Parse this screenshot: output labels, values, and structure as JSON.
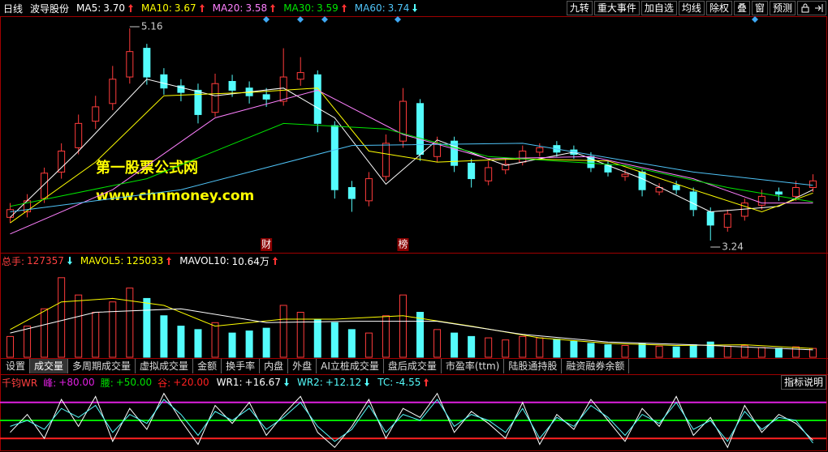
{
  "toolbar": {
    "period": "日线",
    "stock": "波导股份",
    "buttons": [
      "九转",
      "重大事件",
      "加自选",
      "均线",
      "除权",
      "叠",
      "窗",
      "预测"
    ],
    "tabs": [
      "设置",
      "成交量",
      "多周期成交量",
      "虚拟成交量",
      "金额",
      "换手率",
      "内盘",
      "外盘",
      "AI立桩成交量",
      "盘后成交量",
      "市盈率(ttm)",
      "陆股通持股",
      "融资融券余额"
    ],
    "active_tab": 1,
    "help": "指标说明"
  },
  "watermark": [
    "第一股票公式网",
    "www.chnmoney.com"
  ],
  "chart_data": [
    {
      "type": "candlestick",
      "up_color": "#ff3c3c",
      "down_color": "#54fcfc",
      "ylim": [
        3.13,
        5.27
      ],
      "open": [
        3.45,
        3.5,
        3.62,
        3.86,
        4.08,
        4.32,
        4.48,
        4.72,
        4.98,
        4.74,
        4.64,
        4.6,
        4.4,
        4.68,
        4.62,
        4.56,
        4.5,
        4.7,
        4.74,
        4.28,
        3.72,
        3.6,
        3.82,
        4.14,
        4.48,
        4.0,
        4.14,
        3.94,
        3.78,
        3.88,
        3.95,
        4.04,
        4.1,
        4.06,
        4.0,
        3.92,
        3.82,
        3.86,
        3.68,
        3.74,
        3.68,
        3.5,
        3.36,
        3.46,
        3.56,
        3.68,
        3.64,
        3.72
      ],
      "high": [
        3.58,
        3.66,
        3.9,
        4.12,
        4.38,
        4.55,
        4.82,
        5.16,
        5.02,
        4.8,
        4.7,
        4.66,
        4.75,
        4.74,
        4.68,
        4.62,
        4.98,
        4.9,
        4.78,
        4.32,
        3.78,
        3.86,
        4.2,
        4.62,
        4.52,
        4.18,
        4.18,
        3.98,
        3.96,
        3.98,
        4.1,
        4.12,
        4.14,
        4.1,
        4.04,
        3.96,
        3.88,
        3.88,
        3.76,
        3.78,
        3.72,
        3.54,
        3.52,
        3.62,
        3.7,
        3.72,
        3.78,
        3.84
      ],
      "low": [
        3.4,
        3.45,
        3.58,
        3.8,
        4.02,
        4.25,
        4.42,
        4.66,
        4.65,
        4.56,
        4.5,
        4.3,
        4.36,
        4.54,
        4.48,
        4.45,
        4.46,
        4.64,
        4.22,
        3.62,
        3.5,
        3.55,
        3.78,
        4.08,
        3.96,
        3.95,
        3.86,
        3.72,
        3.74,
        3.84,
        3.92,
        4.0,
        4.0,
        3.98,
        3.86,
        3.82,
        3.78,
        3.64,
        3.65,
        3.66,
        3.46,
        3.24,
        3.32,
        3.42,
        3.52,
        3.6,
        3.6,
        3.68
      ],
      "close": [
        3.52,
        3.6,
        3.85,
        4.05,
        4.3,
        4.45,
        4.7,
        4.95,
        4.72,
        4.62,
        4.58,
        4.38,
        4.66,
        4.6,
        4.55,
        4.52,
        4.72,
        4.76,
        4.3,
        3.7,
        3.62,
        3.8,
        4.12,
        4.5,
        4.02,
        4.12,
        3.92,
        3.8,
        3.9,
        3.93,
        4.05,
        4.08,
        4.04,
        4.02,
        3.9,
        3.86,
        3.84,
        3.7,
        3.72,
        3.7,
        3.52,
        3.38,
        3.48,
        3.58,
        3.64,
        3.66,
        3.72,
        3.78
      ],
      "series": [
        {
          "name": "MA5:",
          "color": "#ffffff",
          "value_label": "3.70",
          "trend": "up",
          "x": [
            0,
            4,
            8,
            12,
            16,
            19,
            22,
            25,
            29,
            33,
            37,
            41,
            45,
            47
          ],
          "values": [
            3.45,
            4.05,
            4.7,
            4.55,
            4.62,
            4.35,
            3.75,
            4.15,
            3.92,
            4.04,
            3.8,
            3.5,
            3.55,
            3.7
          ]
        },
        {
          "name": "MA10:",
          "color": "#ffff00",
          "value_label": "3.67",
          "trend": "up",
          "x": [
            0,
            5,
            9,
            14,
            18,
            21,
            25,
            30,
            35,
            40,
            44,
            47
          ],
          "values": [
            3.4,
            3.95,
            4.55,
            4.58,
            4.62,
            4.05,
            3.95,
            3.98,
            3.96,
            3.7,
            3.5,
            3.67
          ]
        },
        {
          "name": "MA20:",
          "color": "#ff80ff",
          "value_label": "3.58",
          "trend": "up",
          "x": [
            0,
            6,
            12,
            18,
            23,
            28,
            34,
            40,
            44,
            47
          ],
          "values": [
            3.3,
            3.7,
            4.35,
            4.6,
            4.2,
            3.98,
            4.0,
            3.8,
            3.58,
            3.58
          ]
        },
        {
          "name": "MA30:",
          "color": "#00e600",
          "value_label": "3.59",
          "trend": "up",
          "x": [
            0,
            8,
            16,
            22,
            28,
            36,
            42,
            47
          ],
          "values": [
            3.55,
            3.8,
            4.3,
            4.25,
            4.0,
            3.92,
            3.72,
            3.59
          ]
        },
        {
          "name": "MA60:",
          "color": "#4fc3f7",
          "value_label": "3.74",
          "trend": "down",
          "x": [
            0,
            10,
            20,
            30,
            40,
            47
          ],
          "values": [
            3.5,
            3.7,
            4.1,
            4.12,
            3.86,
            3.74
          ]
        }
      ],
      "annotations": [
        {
          "x": 7,
          "value": 5.16
        },
        {
          "x": 41,
          "value": 3.24
        }
      ],
      "markers": [
        {
          "x": 15,
          "label": "财"
        },
        {
          "x": 23,
          "label": "榜"
        }
      ]
    },
    {
      "type": "bar",
      "title": "总手:",
      "title_color": "#ff4040",
      "trend": "down",
      "ylim": [
        0,
        1300000
      ],
      "values": [
        300000,
        450000,
        700000,
        1150000,
        900000,
        650000,
        800000,
        1000000,
        850000,
        600000,
        450000,
        400000,
        500000,
        350000,
        380000,
        420000,
        750000,
        650000,
        550000,
        500000,
        400000,
        350000,
        600000,
        900000,
        650000,
        400000,
        350000,
        300000,
        280000,
        250000,
        300000,
        280000,
        260000,
        230000,
        200000,
        180000,
        170000,
        200000,
        160000,
        150000,
        180000,
        220000,
        160000,
        170000,
        140000,
        130000,
        150000,
        127357
      ],
      "series": [
        {
          "name": "MAVOL5:",
          "color": "#ffff00",
          "value_label": "125033",
          "trend": "up",
          "x": [
            0,
            3,
            6,
            9,
            12,
            16,
            19,
            23,
            27,
            31,
            35,
            39,
            43,
            47
          ],
          "values": [
            400000,
            800000,
            850000,
            750000,
            450000,
            550000,
            550000,
            600000,
            450000,
            280000,
            200000,
            170000,
            180000,
            125033
          ]
        },
        {
          "name": "MAVOL10:",
          "color": "#ffffff",
          "value_label": "10.64万",
          "trend": "up",
          "x": [
            0,
            5,
            10,
            15,
            20,
            25,
            30,
            35,
            40,
            47
          ],
          "values": [
            350000,
            650000,
            700000,
            500000,
            520000,
            520000,
            330000,
            220000,
            180000,
            106400
          ]
        }
      ]
    },
    {
      "type": "line",
      "title": "千钧WR",
      "title_color": "#ff4040",
      "ylim": [
        0,
        100
      ],
      "levels": [
        {
          "name": "峰:",
          "label": "+80.00",
          "value": 80,
          "color": "#e020e0"
        },
        {
          "name": "腰:",
          "label": "+50.00",
          "value": 50,
          "color": "#00e000"
        },
        {
          "name": "谷:",
          "label": "+20.00",
          "value": 20,
          "color": "#ff2020"
        }
      ],
      "series": [
        {
          "name": "WR1:",
          "color": "#ffffff",
          "value_label": "+16.67",
          "trend": "down",
          "values": [
            30,
            60,
            20,
            85,
            40,
            90,
            15,
            70,
            35,
            95,
            50,
            10,
            75,
            45,
            80,
            25,
            60,
            90,
            30,
            5,
            40,
            85,
            20,
            70,
            55,
            95,
            30,
            65,
            45,
            20,
            80,
            10,
            60,
            35,
            85,
            50,
            15,
            70,
            40,
            90,
            25,
            55,
            5,
            75,
            30,
            60,
            45,
            16.67
          ]
        },
        {
          "name": "WR2:",
          "color": "#54fcfc",
          "value_label": "+12.12",
          "trend": "down",
          "values": [
            40,
            50,
            35,
            70,
            55,
            75,
            30,
            60,
            45,
            85,
            60,
            25,
            65,
            50,
            70,
            35,
            55,
            80,
            40,
            15,
            35,
            75,
            30,
            60,
            50,
            85,
            40,
            60,
            50,
            30,
            70,
            20,
            55,
            40,
            75,
            55,
            25,
            60,
            45,
            80,
            35,
            50,
            15,
            65,
            35,
            55,
            50,
            12.12
          ]
        }
      ],
      "extra": {
        "name": "TC:",
        "value_label": "-4.55",
        "trend": "up",
        "color": "#54fcfc"
      }
    }
  ]
}
